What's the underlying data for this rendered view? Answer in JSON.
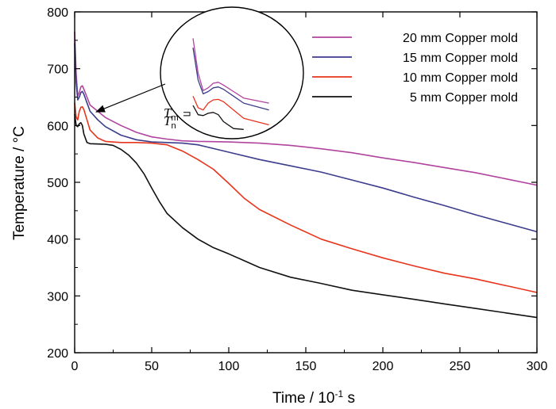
{
  "chart_data": {
    "type": "line",
    "xlabel": "Time / 10",
    "xlabel_sup": "-1",
    "xlabel_unit": " s",
    "ylabel": "Temperature / °C",
    "xlim": [
      0,
      300
    ],
    "ylim": [
      200,
      800
    ],
    "xticks": [
      "0",
      "50",
      "100",
      "150",
      "200",
      "250",
      "300"
    ],
    "yticks": [
      "200",
      "300",
      "400",
      "500",
      "600",
      "700",
      "800"
    ],
    "grid": false,
    "legend_position": "top-right",
    "series": [
      {
        "name": "20 mm Copper mold",
        "color": "#b0449e",
        "points": [
          [
            0,
            765
          ],
          [
            1,
            690
          ],
          [
            2,
            652
          ],
          [
            3,
            658
          ],
          [
            4,
            668
          ],
          [
            5,
            670
          ],
          [
            6,
            664
          ],
          [
            8,
            650
          ],
          [
            10,
            636
          ],
          [
            15,
            625
          ],
          [
            20,
            614
          ],
          [
            30,
            600
          ],
          [
            40,
            588
          ],
          [
            50,
            580
          ],
          [
            60,
            576
          ],
          [
            70,
            573
          ],
          [
            80,
            572
          ],
          [
            100,
            571
          ],
          [
            120,
            569
          ],
          [
            140,
            565
          ],
          [
            160,
            559
          ],
          [
            180,
            552
          ],
          [
            200,
            543
          ],
          [
            220,
            535
          ],
          [
            240,
            526
          ],
          [
            260,
            517
          ],
          [
            280,
            506
          ],
          [
            300,
            495
          ]
        ]
      },
      {
        "name": "15 mm Copper mold",
        "color": "#3c3c8c",
        "points": [
          [
            0,
            745
          ],
          [
            1,
            675
          ],
          [
            2,
            645
          ],
          [
            3,
            650
          ],
          [
            4,
            658
          ],
          [
            5,
            660
          ],
          [
            6,
            655
          ],
          [
            8,
            640
          ],
          [
            10,
            625
          ],
          [
            15,
            610
          ],
          [
            20,
            598
          ],
          [
            30,
            583
          ],
          [
            40,
            575
          ],
          [
            50,
            571
          ],
          [
            60,
            570
          ],
          [
            70,
            569
          ],
          [
            80,
            566
          ],
          [
            100,
            553
          ],
          [
            120,
            540
          ],
          [
            140,
            529
          ],
          [
            160,
            518
          ],
          [
            180,
            504
          ],
          [
            200,
            490
          ],
          [
            220,
            474
          ],
          [
            240,
            459
          ],
          [
            260,
            443
          ],
          [
            280,
            428
          ],
          [
            300,
            413
          ]
        ]
      },
      {
        "name": "10 mm Copper mold",
        "color": "#e8341c",
        "points": [
          [
            0,
            640
          ],
          [
            1,
            615
          ],
          [
            2,
            610
          ],
          [
            3,
            625
          ],
          [
            4,
            632
          ],
          [
            5,
            633
          ],
          [
            6,
            628
          ],
          [
            8,
            610
          ],
          [
            10,
            592
          ],
          [
            15,
            578
          ],
          [
            20,
            572
          ],
          [
            30,
            570
          ],
          [
            40,
            570
          ],
          [
            50,
            569
          ],
          [
            60,
            566
          ],
          [
            70,
            555
          ],
          [
            80,
            540
          ],
          [
            90,
            523
          ],
          [
            100,
            498
          ],
          [
            110,
            472
          ],
          [
            120,
            452
          ],
          [
            140,
            425
          ],
          [
            160,
            400
          ],
          [
            180,
            383
          ],
          [
            200,
            367
          ],
          [
            220,
            353
          ],
          [
            240,
            340
          ],
          [
            260,
            330
          ],
          [
            280,
            318
          ],
          [
            300,
            306
          ]
        ]
      },
      {
        "name": "5 mm Copper mold",
        "color": "#111111",
        "points": [
          [
            0,
            620
          ],
          [
            1,
            600
          ],
          [
            2,
            598
          ],
          [
            3,
            603
          ],
          [
            4,
            605
          ],
          [
            5,
            600
          ],
          [
            6,
            585
          ],
          [
            8,
            570
          ],
          [
            10,
            568
          ],
          [
            20,
            567
          ],
          [
            25,
            565
          ],
          [
            30,
            558
          ],
          [
            35,
            548
          ],
          [
            40,
            534
          ],
          [
            45,
            515
          ],
          [
            50,
            490
          ],
          [
            55,
            466
          ],
          [
            60,
            445
          ],
          [
            70,
            420
          ],
          [
            80,
            400
          ],
          [
            90,
            385
          ],
          [
            100,
            374
          ],
          [
            110,
            362
          ],
          [
            120,
            350
          ],
          [
            140,
            333
          ],
          [
            160,
            322
          ],
          [
            180,
            310
          ],
          [
            200,
            302
          ],
          [
            220,
            294
          ],
          [
            240,
            286
          ],
          [
            260,
            278
          ],
          [
            280,
            270
          ],
          [
            300,
            262
          ]
        ]
      }
    ],
    "inset": {
      "labels": [
        "T",
        "T"
      ],
      "subscripts": [
        "m",
        "n"
      ]
    }
  }
}
